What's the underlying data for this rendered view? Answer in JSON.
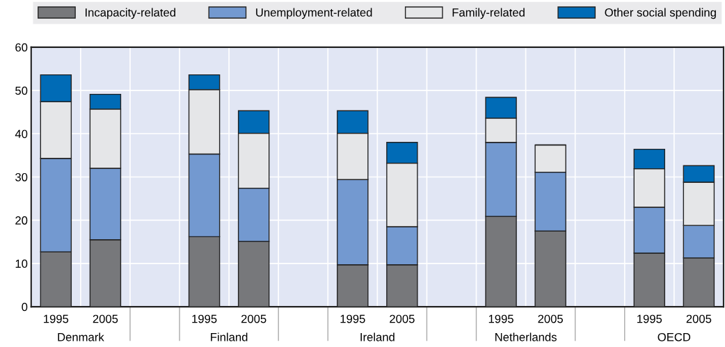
{
  "chart_data": {
    "type": "bar",
    "stacked": true,
    "categories": [
      "1995",
      "2005",
      null,
      "1995",
      "2005",
      null,
      "1995",
      "2005",
      null,
      "1995",
      "2005",
      null,
      "1995",
      "2005"
    ],
    "series": [
      {
        "name": "Incapacity-related",
        "color": "#77787b",
        "values": [
          12.7,
          15.5,
          null,
          16.2,
          15.1,
          null,
          9.7,
          9.7,
          null,
          20.9,
          17.5,
          null,
          12.4,
          11.3
        ]
      },
      {
        "name": "Unemployment-related",
        "color": "#7399d0",
        "values": [
          21.6,
          16.5,
          null,
          19.1,
          12.3,
          null,
          19.7,
          8.8,
          null,
          17.1,
          13.6,
          null,
          10.6,
          7.5
        ]
      },
      {
        "name": "Family-related",
        "color": "#e5e6e8",
        "values": [
          13.1,
          13.7,
          null,
          14.9,
          12.7,
          null,
          10.7,
          14.7,
          null,
          5.6,
          6.3,
          null,
          8.9,
          10.0
        ]
      },
      {
        "name": "Other social spending",
        "color": "#006bb6",
        "values": [
          6.2,
          3.4,
          null,
          3.4,
          5.2,
          null,
          5.2,
          4.8,
          null,
          4.8,
          null,
          null,
          4.5,
          3.8
        ]
      }
    ],
    "annotations": [
      "Denmark",
      "Finland",
      "Ireland",
      "Netherlands",
      "OECD"
    ],
    "ylim": [
      0,
      60
    ],
    "yticks": [
      0,
      10,
      20,
      30,
      40,
      50,
      60
    ],
    "grid": true,
    "legend": "top"
  }
}
